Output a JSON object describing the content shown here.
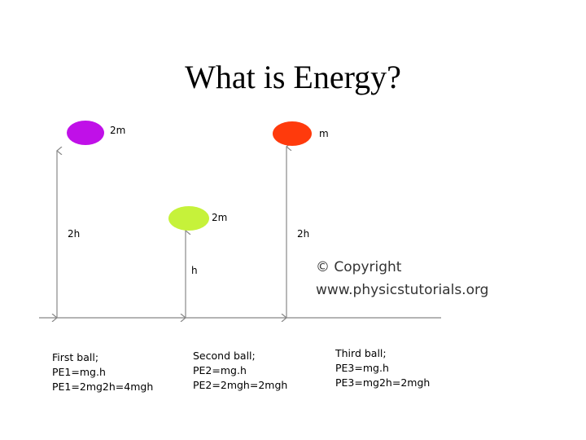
{
  "title": "What is Energy?",
  "balls": [
    {
      "mass": "2m",
      "height": "2h"
    },
    {
      "mass": "2m",
      "height": "h"
    },
    {
      "mass": "m",
      "height": "2h"
    }
  ],
  "copyright": [
    "© Copyright",
    "www.physicstutorials.org"
  ],
  "notes": [
    [
      "First ball;",
      "PE1=mg.h",
      "PE1=2mg2h=4mgh"
    ],
    [
      "Second ball;",
      "PE2=mg.h",
      "PE2=2mgh=2mgh"
    ],
    [
      "Third ball;",
      "PE3=mg.h",
      "PE3=mg2h=2mgh"
    ]
  ]
}
